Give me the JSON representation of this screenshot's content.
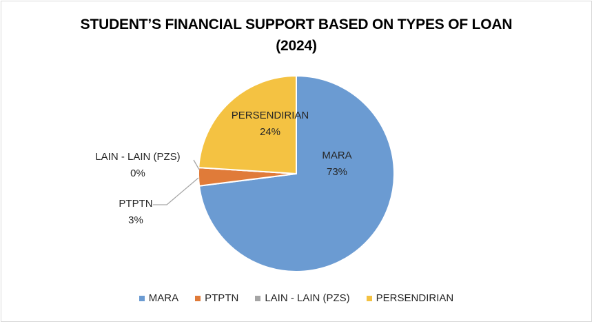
{
  "chart_data": {
    "type": "pie",
    "title_line1": "STUDENT’S FINANCIAL SUPPORT BASED ON TYPES OF LOAN",
    "title_line2": "(2024)",
    "categories": [
      "MARA",
      "PTPTN",
      "LAIN - LAIN (PZS)",
      "PERSENDIRIAN"
    ],
    "values": [
      73,
      3,
      0,
      24
    ],
    "labels": [
      "73%",
      "3%",
      "0%",
      "24%"
    ],
    "colors": [
      "#6b9bd2",
      "#e07b39",
      "#a5a5a5",
      "#f4c242"
    ],
    "legend_position": "bottom"
  }
}
